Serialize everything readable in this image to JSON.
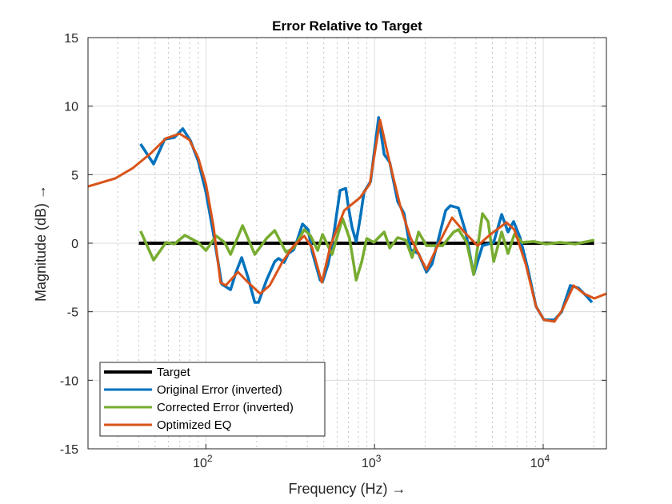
{
  "chart_data": {
    "type": "line",
    "title": "Error Relative to Target",
    "xlabel": "Frequency  (Hz)  →",
    "ylabel": "Magnitude  (dB)  →",
    "xscale": "log",
    "xlim": [
      20,
      23700
    ],
    "ylim": [
      -15,
      15
    ],
    "grid": true,
    "minor_grid": true,
    "legend_position": "bottom-left",
    "y_ticks": [
      "-15",
      "-10",
      "-5",
      "0",
      "5",
      "10",
      "15"
    ],
    "x_ticks": [
      {
        "value": 100,
        "base": "10",
        "exp": "2"
      },
      {
        "value": 1000,
        "base": "10",
        "exp": "3"
      },
      {
        "value": 10000,
        "base": "10",
        "exp": "4"
      }
    ],
    "series": [
      {
        "name": "Target",
        "color": "#000000",
        "x": [
          40,
          20000
        ],
        "y": [
          0,
          0
        ]
      },
      {
        "name": "Original Error (inverted)",
        "color": "#0072BD",
        "x": [
          41,
          49,
          57,
          65,
          73,
          81,
          90,
          100,
          111,
          124,
          140,
          151,
          163,
          178,
          195,
          205,
          229,
          256,
          270,
          291,
          308,
          332,
          351,
          374,
          404,
          427,
          476,
          492,
          531,
          573,
          625,
          675,
          698,
          737,
          778,
          822,
          867,
          947,
          1057,
          1140,
          1231,
          1372,
          1497,
          1634,
          1823,
          2032,
          2194,
          2641,
          2818,
          3147,
          3470,
          3871,
          4366,
          5086,
          5673,
          6186,
          6677,
          7290,
          8130,
          9067,
          10110,
          11650,
          12840,
          14480,
          16170,
          18040,
          19460
        ],
        "y": [
          7.24,
          5.78,
          7.59,
          7.71,
          8.35,
          7.47,
          6.01,
          3.74,
          0.64,
          -2.98,
          -3.39,
          -2.1,
          -1.05,
          -2.51,
          -4.32,
          -4.32,
          -2.69,
          -1.34,
          -1.11,
          -1.4,
          -0.76,
          -0.47,
          0.35,
          1.4,
          0.99,
          -0.64,
          -2.69,
          -2.8,
          -1.52,
          0.64,
          3.85,
          4.0,
          2.72,
          1.11,
          0.12,
          1.81,
          3.74,
          4.5,
          9.17,
          6.48,
          5.9,
          3.04,
          2.16,
          -0.47,
          -0.76,
          -2.1,
          -1.52,
          2.39,
          2.74,
          2.57,
          0.82,
          -2.28,
          -0.18,
          0.06,
          2.1,
          0.82,
          1.58,
          0.41,
          -1.93,
          -4.61,
          -5.6,
          -5.6,
          -5.02,
          -3.09,
          -3.27,
          -3.85,
          -4.32
        ]
      },
      {
        "name": "Corrected Error (inverted)",
        "color": "#77AC30",
        "x": [
          41,
          49,
          58,
          65,
          75,
          90,
          100,
          115,
          129,
          140,
          165,
          195,
          229,
          242,
          256,
          298,
          332,
          383,
          418,
          460,
          492,
          560,
          646,
          711,
          752,
          778,
          840,
          899,
          990,
          1140,
          1231,
          1372,
          1531,
          1672,
          1823,
          2032,
          2528,
          2947,
          3147,
          3517,
          3871,
          4366,
          4713,
          5086,
          5673,
          6186,
          6745,
          7520,
          8780,
          10440,
          12560,
          15500,
          20090
        ],
        "y": [
          0.88,
          -1.23,
          0.06,
          -0.06,
          0.58,
          0.06,
          -0.53,
          0.53,
          0.06,
          -0.82,
          1.28,
          -0.82,
          0.35,
          0.64,
          0.93,
          -0.64,
          -0.35,
          0.99,
          0.53,
          -0.53,
          0.64,
          -0.82,
          1.81,
          0.35,
          -1.52,
          -2.69,
          -1.34,
          0.35,
          0.06,
          0.82,
          -0.35,
          0.41,
          0.23,
          -1.05,
          0.82,
          -0.18,
          -0.18,
          0.82,
          0.99,
          0.06,
          -2.28,
          2.16,
          1.58,
          -1.34,
          0.82,
          -0.76,
          0.64,
          0.06,
          0.12,
          -0.06,
          0.06,
          -0.06,
          0.23
        ]
      },
      {
        "name": "Optimized EQ",
        "color": "#D95319",
        "x": [
          20,
          29,
          37,
          47,
          58,
          70,
          80,
          90,
          100,
          111,
          122,
          131,
          155,
          178,
          210,
          239,
          285,
          332,
          383,
          427,
          487,
          548,
          661,
          822,
          937,
          1079,
          1205,
          1419,
          1634,
          2032,
          2367,
          2883,
          3398,
          4086,
          4863,
          6054,
          6745,
          7870,
          9067,
          10110,
          11650,
          13000,
          15140,
          17460,
          20090,
          23660
        ],
        "y": [
          4.14,
          4.73,
          5.49,
          6.54,
          7.65,
          7.99,
          7.53,
          6.24,
          4.32,
          1.23,
          -2.86,
          -3.09,
          -2.1,
          -2.86,
          -3.68,
          -3.09,
          -1.34,
          -0.18,
          0.53,
          -0.35,
          -2.86,
          -0.18,
          2.39,
          3.33,
          4.32,
          8.99,
          6.36,
          2.74,
          0.41,
          -1.93,
          -0.18,
          1.87,
          0.82,
          -0.18,
          0.64,
          1.51,
          0.99,
          -1.51,
          -4.61,
          -5.6,
          -5.72,
          -4.85,
          -3.09,
          -3.68,
          -4.03,
          -3.68
        ]
      }
    ]
  }
}
